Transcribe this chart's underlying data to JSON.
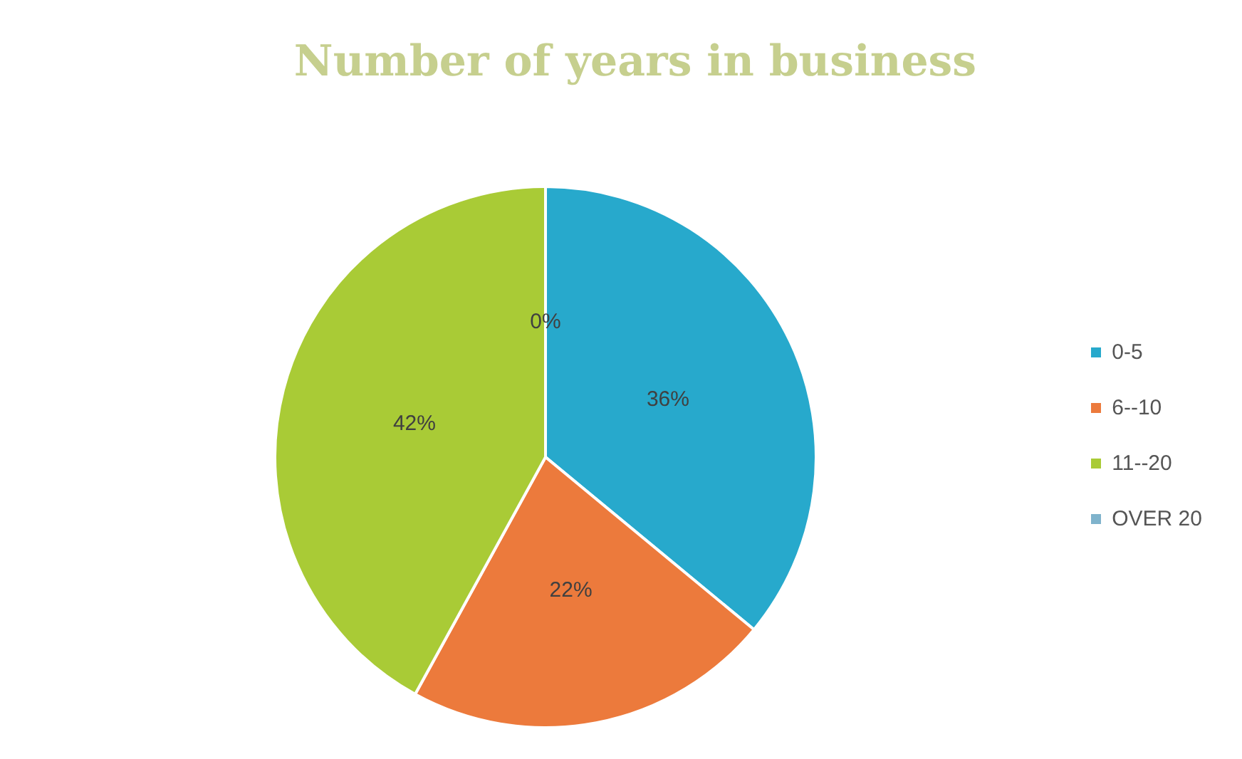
{
  "chart_data": {
    "type": "pie",
    "title": "Number of years in business",
    "categories": [
      "0-5",
      "6--10",
      "11--20",
      "OVER 20"
    ],
    "values": [
      36,
      22,
      42,
      0
    ],
    "colors": [
      "#27a9cc",
      "#ec7a3c",
      "#a9cb36",
      "#7fb3cc"
    ],
    "value_labels": [
      "36%",
      "22%",
      "42%",
      "0%"
    ],
    "legend": "right"
  }
}
